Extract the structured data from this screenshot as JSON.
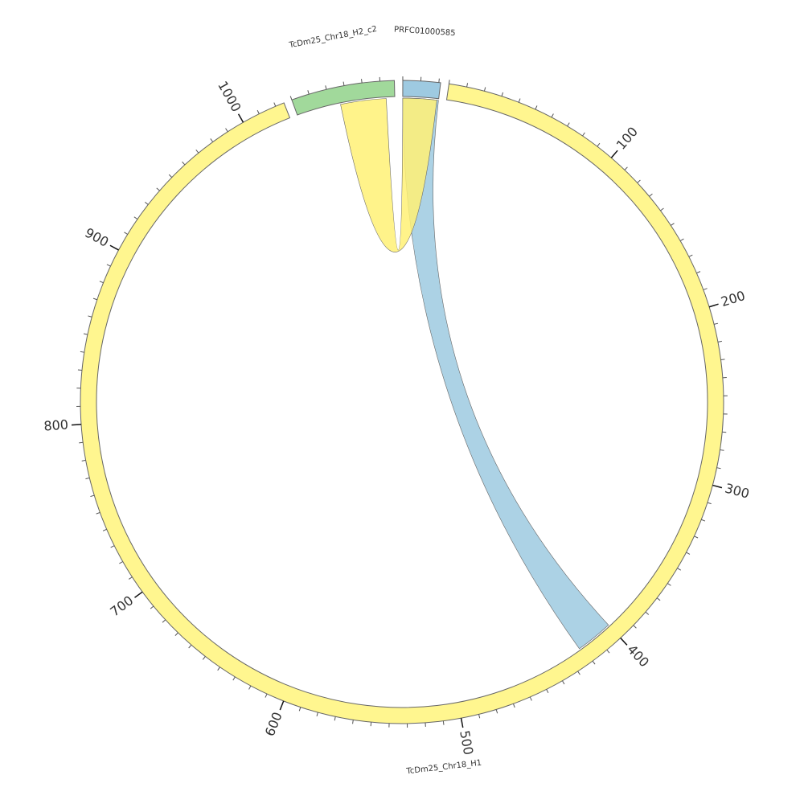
{
  "chart_data": {
    "type": "chord",
    "sectors": [
      {
        "name": "TcDm25_Chr18_H1",
        "value": 1025,
        "color": "#fff68f",
        "xticks": [
          100,
          200,
          300,
          400,
          500,
          600,
          700,
          800,
          900,
          1000
        ]
      },
      {
        "name": "TcDm25_Chr18_H2_c2",
        "value": 58,
        "color": "#a1d99b",
        "xticks": []
      },
      {
        "name": "PRFC01000585",
        "value": 21,
        "color": "#9ecae1",
        "xticks": []
      }
    ],
    "minor_tick_interval": 10,
    "links": [
      {
        "source": "PRFC01000585",
        "source_range": [
          0,
          21
        ],
        "target": "TcDm25_Chr18_H1",
        "target_range": [
          400,
          422
        ],
        "color": "#9ecae1"
      },
      {
        "source": "PRFC01000585",
        "source_range": [
          0,
          20
        ],
        "target": "TcDm25_Chr18_H2_c2",
        "target_range": [
          26,
          53
        ],
        "color": "#fff176"
      }
    ]
  }
}
